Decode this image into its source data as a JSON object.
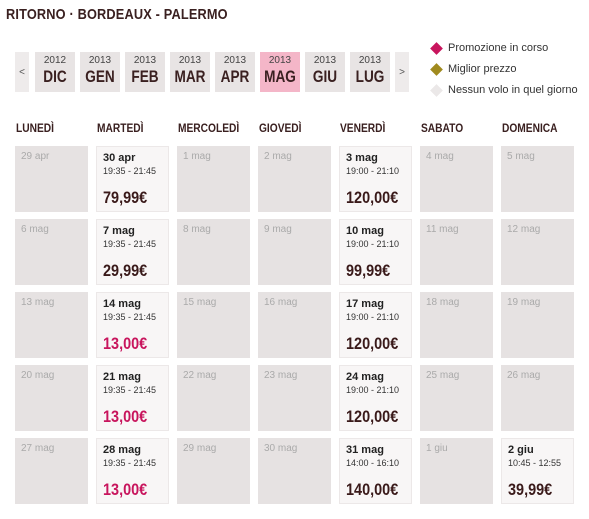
{
  "header": {
    "title": "RITORNO · BORDEAUX - PALERMO"
  },
  "months": {
    "prev": "<",
    "next": ">",
    "selected": 5,
    "items": [
      {
        "year": "2012",
        "month": "DIC"
      },
      {
        "year": "2013",
        "month": "GEN"
      },
      {
        "year": "2013",
        "month": "FEB"
      },
      {
        "year": "2013",
        "month": "MAR"
      },
      {
        "year": "2013",
        "month": "APR"
      },
      {
        "year": "2013",
        "month": "MAG"
      },
      {
        "year": "2013",
        "month": "GIU"
      },
      {
        "year": "2013",
        "month": "LUG"
      }
    ]
  },
  "legend": [
    {
      "label": "Promozione in corso",
      "color": "#c8155d"
    },
    {
      "label": "Miglior prezzo",
      "color": "#a08a1e"
    },
    {
      "label": "Nessun volo in quel giorno",
      "color": "#ebe8e8"
    }
  ],
  "weekdays": [
    "LUNEDÌ",
    "MARTEDÌ",
    "MERCOLEDÌ",
    "GIOVEDÌ",
    "VENERDÌ",
    "SABATO",
    "DOMENICA"
  ],
  "weeks": [
    [
      {
        "date": "29 apr"
      },
      {
        "date": "30 apr",
        "times": "19:35 - 21:45",
        "price": "79,99€"
      },
      {
        "date": "1 mag"
      },
      {
        "date": "2 mag"
      },
      {
        "date": "3 mag",
        "times": "19:00 - 21:10",
        "price": "120,00€"
      },
      {
        "date": "4 mag"
      },
      {
        "date": "5 mag"
      }
    ],
    [
      {
        "date": "6 mag"
      },
      {
        "date": "7 mag",
        "times": "19:35 - 21:45",
        "price": "29,99€"
      },
      {
        "date": "8 mag"
      },
      {
        "date": "9 mag"
      },
      {
        "date": "10 mag",
        "times": "19:00 - 21:10",
        "price": "99,99€"
      },
      {
        "date": "11 mag"
      },
      {
        "date": "12 mag"
      }
    ],
    [
      {
        "date": "13 mag"
      },
      {
        "date": "14 mag",
        "times": "19:35 - 21:45",
        "price": "13,00€",
        "promo": true
      },
      {
        "date": "15 mag"
      },
      {
        "date": "16 mag"
      },
      {
        "date": "17 mag",
        "times": "19:00 - 21:10",
        "price": "120,00€"
      },
      {
        "date": "18 mag"
      },
      {
        "date": "19 mag"
      }
    ],
    [
      {
        "date": "20 mag"
      },
      {
        "date": "21 mag",
        "times": "19:35 - 21:45",
        "price": "13,00€",
        "promo": true
      },
      {
        "date": "22 mag"
      },
      {
        "date": "23 mag"
      },
      {
        "date": "24 mag",
        "times": "19:00 - 21:10",
        "price": "120,00€"
      },
      {
        "date": "25 mag"
      },
      {
        "date": "26 mag"
      }
    ],
    [
      {
        "date": "27 mag"
      },
      {
        "date": "28 mag",
        "times": "19:35 - 21:45",
        "price": "13,00€",
        "promo": true
      },
      {
        "date": "29 mag"
      },
      {
        "date": "30 mag"
      },
      {
        "date": "31 mag",
        "times": "14:00 - 16:10",
        "price": "140,00€"
      },
      {
        "date": "1 giu"
      },
      {
        "date": "2 giu",
        "times": "10:45 - 12:55",
        "price": "39,99€"
      }
    ]
  ]
}
